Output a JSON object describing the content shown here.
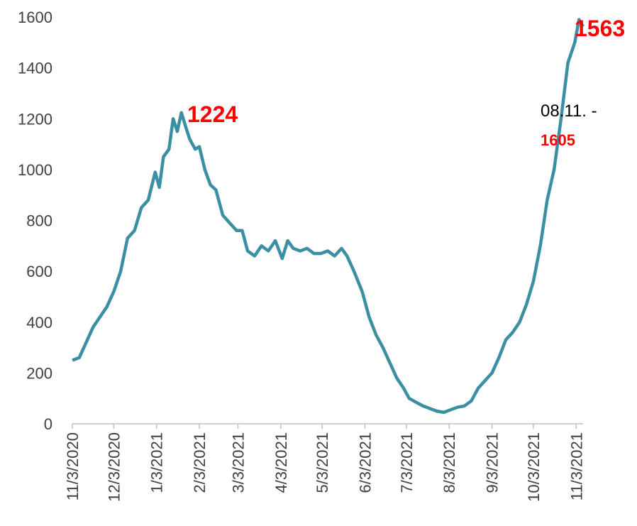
{
  "chart_data": {
    "type": "line",
    "x": [
      "11/3/2020",
      "11/8/2020",
      "11/13/2020",
      "11/18/2020",
      "11/23/2020",
      "11/28/2020",
      "12/3/2020",
      "12/8/2020",
      "12/13/2020",
      "12/18/2020",
      "12/23/2020",
      "12/28/2020",
      "1/2/2021",
      "1/5/2021",
      "1/8/2021",
      "1/12/2021",
      "1/15/2021",
      "1/18/2021",
      "1/21/2021",
      "1/24/2021",
      "1/27/2021",
      "1/31/2021",
      "2/3/2021",
      "2/7/2021",
      "2/11/2021",
      "2/15/2021",
      "2/20/2021",
      "2/25/2021",
      "3/2/2021",
      "3/6/2021",
      "3/10/2021",
      "3/15/2021",
      "3/20/2021",
      "3/25/2021",
      "3/30/2021",
      "4/4/2021",
      "4/8/2021",
      "4/12/2021",
      "4/17/2021",
      "4/22/2021",
      "4/27/2021",
      "5/2/2021",
      "5/7/2021",
      "5/12/2021",
      "5/17/2021",
      "5/21/2021",
      "5/26/2021",
      "6/1/2021",
      "6/6/2021",
      "6/11/2021",
      "6/16/2021",
      "6/21/2021",
      "6/26/2021",
      "7/1/2021",
      "7/5/2021",
      "7/10/2021",
      "7/15/2021",
      "7/20/2021",
      "7/25/2021",
      "7/30/2021",
      "8/4/2021",
      "8/9/2021",
      "8/14/2021",
      "8/19/2021",
      "8/24/2021",
      "8/29/2021",
      "9/3/2021",
      "9/8/2021",
      "9/13/2021",
      "9/18/2021",
      "9/23/2021",
      "9/28/2021",
      "10/3/2021",
      "10/8/2021",
      "10/13/2021",
      "10/18/2021",
      "10/23/2021",
      "10/28/2021",
      "11/2/2021",
      "11/5/2021",
      "11/8/2021"
    ],
    "series": [
      {
        "name": "cases",
        "color": "#3a8fa3",
        "values": [
          250,
          260,
          320,
          380,
          420,
          460,
          520,
          600,
          730,
          760,
          850,
          880,
          990,
          930,
          1050,
          1080,
          1200,
          1150,
          1224,
          1170,
          1120,
          1080,
          1090,
          1000,
          940,
          920,
          820,
          790,
          760,
          760,
          680,
          660,
          700,
          680,
          720,
          650,
          720,
          690,
          680,
          690,
          670,
          670,
          680,
          660,
          690,
          660,
          600,
          520,
          420,
          350,
          300,
          240,
          180,
          140,
          100,
          85,
          70,
          60,
          50,
          45,
          55,
          65,
          70,
          90,
          140,
          170,
          200,
          260,
          330,
          360,
          400,
          470,
          560,
          700,
          880,
          1000,
          1200,
          1420,
          1500,
          1590,
          1563
        ]
      }
    ],
    "ylim": [
      0,
      1600
    ],
    "yticks": [
      0,
      200,
      400,
      600,
      800,
      1000,
      1200,
      1400,
      1600
    ],
    "xlim": [
      "11/3/2020",
      "11/8/2021"
    ],
    "xticks": [
      "11/3/2020",
      "12/3/2020",
      "1/3/2021",
      "2/3/2021",
      "3/3/2021",
      "4/3/2021",
      "5/3/2021",
      "6/3/2021",
      "7/3/2021",
      "8/3/2021",
      "9/3/2021",
      "10/3/2021",
      "11/3/2021"
    ],
    "annotations": [
      {
        "text": "1224",
        "color": "#ff0000"
      },
      {
        "text": "1563",
        "color": "#ff0000"
      },
      {
        "text": "08.11. -",
        "color": "#000000"
      },
      {
        "text": "1605",
        "color": "#ff0000"
      }
    ]
  }
}
